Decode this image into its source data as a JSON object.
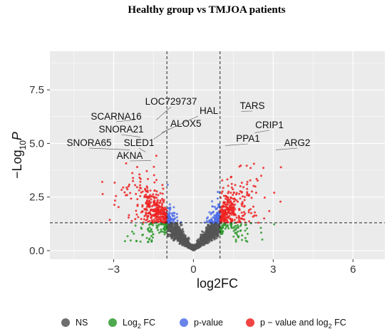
{
  "chart_data": {
    "type": "scatter",
    "title": "Healthy group vs TMJOA patients",
    "xlabel": "log2FC",
    "ylabel_main": "−Log",
    "ylabel_sub": "10",
    "ylabel_var": "P",
    "xlim": [
      -5.4,
      7.2
    ],
    "ylim": [
      -0.4,
      9.3
    ],
    "xticks": [
      -3,
      0,
      3,
      6
    ],
    "yticks": [
      0.0,
      2.5,
      5.0,
      7.5
    ],
    "xtick_labels": [
      "−3",
      "0",
      "3",
      "6"
    ],
    "ytick_labels": [
      "0.0",
      "2.5",
      "5.0",
      "7.5"
    ],
    "grid": true,
    "fc_cutoff": 1.0,
    "p_cutoff_log10": 1.3,
    "legend_position": "bottom",
    "series": [
      {
        "name": "NS",
        "color": "#555555"
      },
      {
        "name": "Log2 FC",
        "name_main": "Log",
        "name_sub": "2",
        "name_tail": " FC",
        "color": "#2e9a2e"
      },
      {
        "name": "p-value",
        "color": "#4f6fe8"
      },
      {
        "name": "p − value and log2 FC",
        "name_main": "p − value and log",
        "name_sub": "2",
        "name_tail": " FC",
        "color": "#ee2222"
      }
    ],
    "annotations": [
      {
        "label": "LOC729737",
        "x": -1.4,
        "y": 6.1
      },
      {
        "label": "HAL",
        "x": -1.2,
        "y": 5.5
      },
      {
        "label": "SCARNA16",
        "x": -2.2,
        "y": 6.1
      },
      {
        "label": "SNORA21",
        "x": -2.0,
        "y": 5.3
      },
      {
        "label": "ALOX5",
        "x": -1.5,
        "y": 5.2
      },
      {
        "label": "SNORA65",
        "x": -2.4,
        "y": 4.7
      },
      {
        "label": "SLED1",
        "x": -1.8,
        "y": 4.6
      },
      {
        "label": "AKNA",
        "x": -1.6,
        "y": 4.2
      },
      {
        "label": "TARS",
        "x": 1.8,
        "y": 6.5
      },
      {
        "label": "CRIP1",
        "x": 2.3,
        "y": 5.5
      },
      {
        "label": "PPA1",
        "x": 1.2,
        "y": 4.9
      },
      {
        "label": "ARG2",
        "x": 3.1,
        "y": 4.7
      }
    ]
  }
}
